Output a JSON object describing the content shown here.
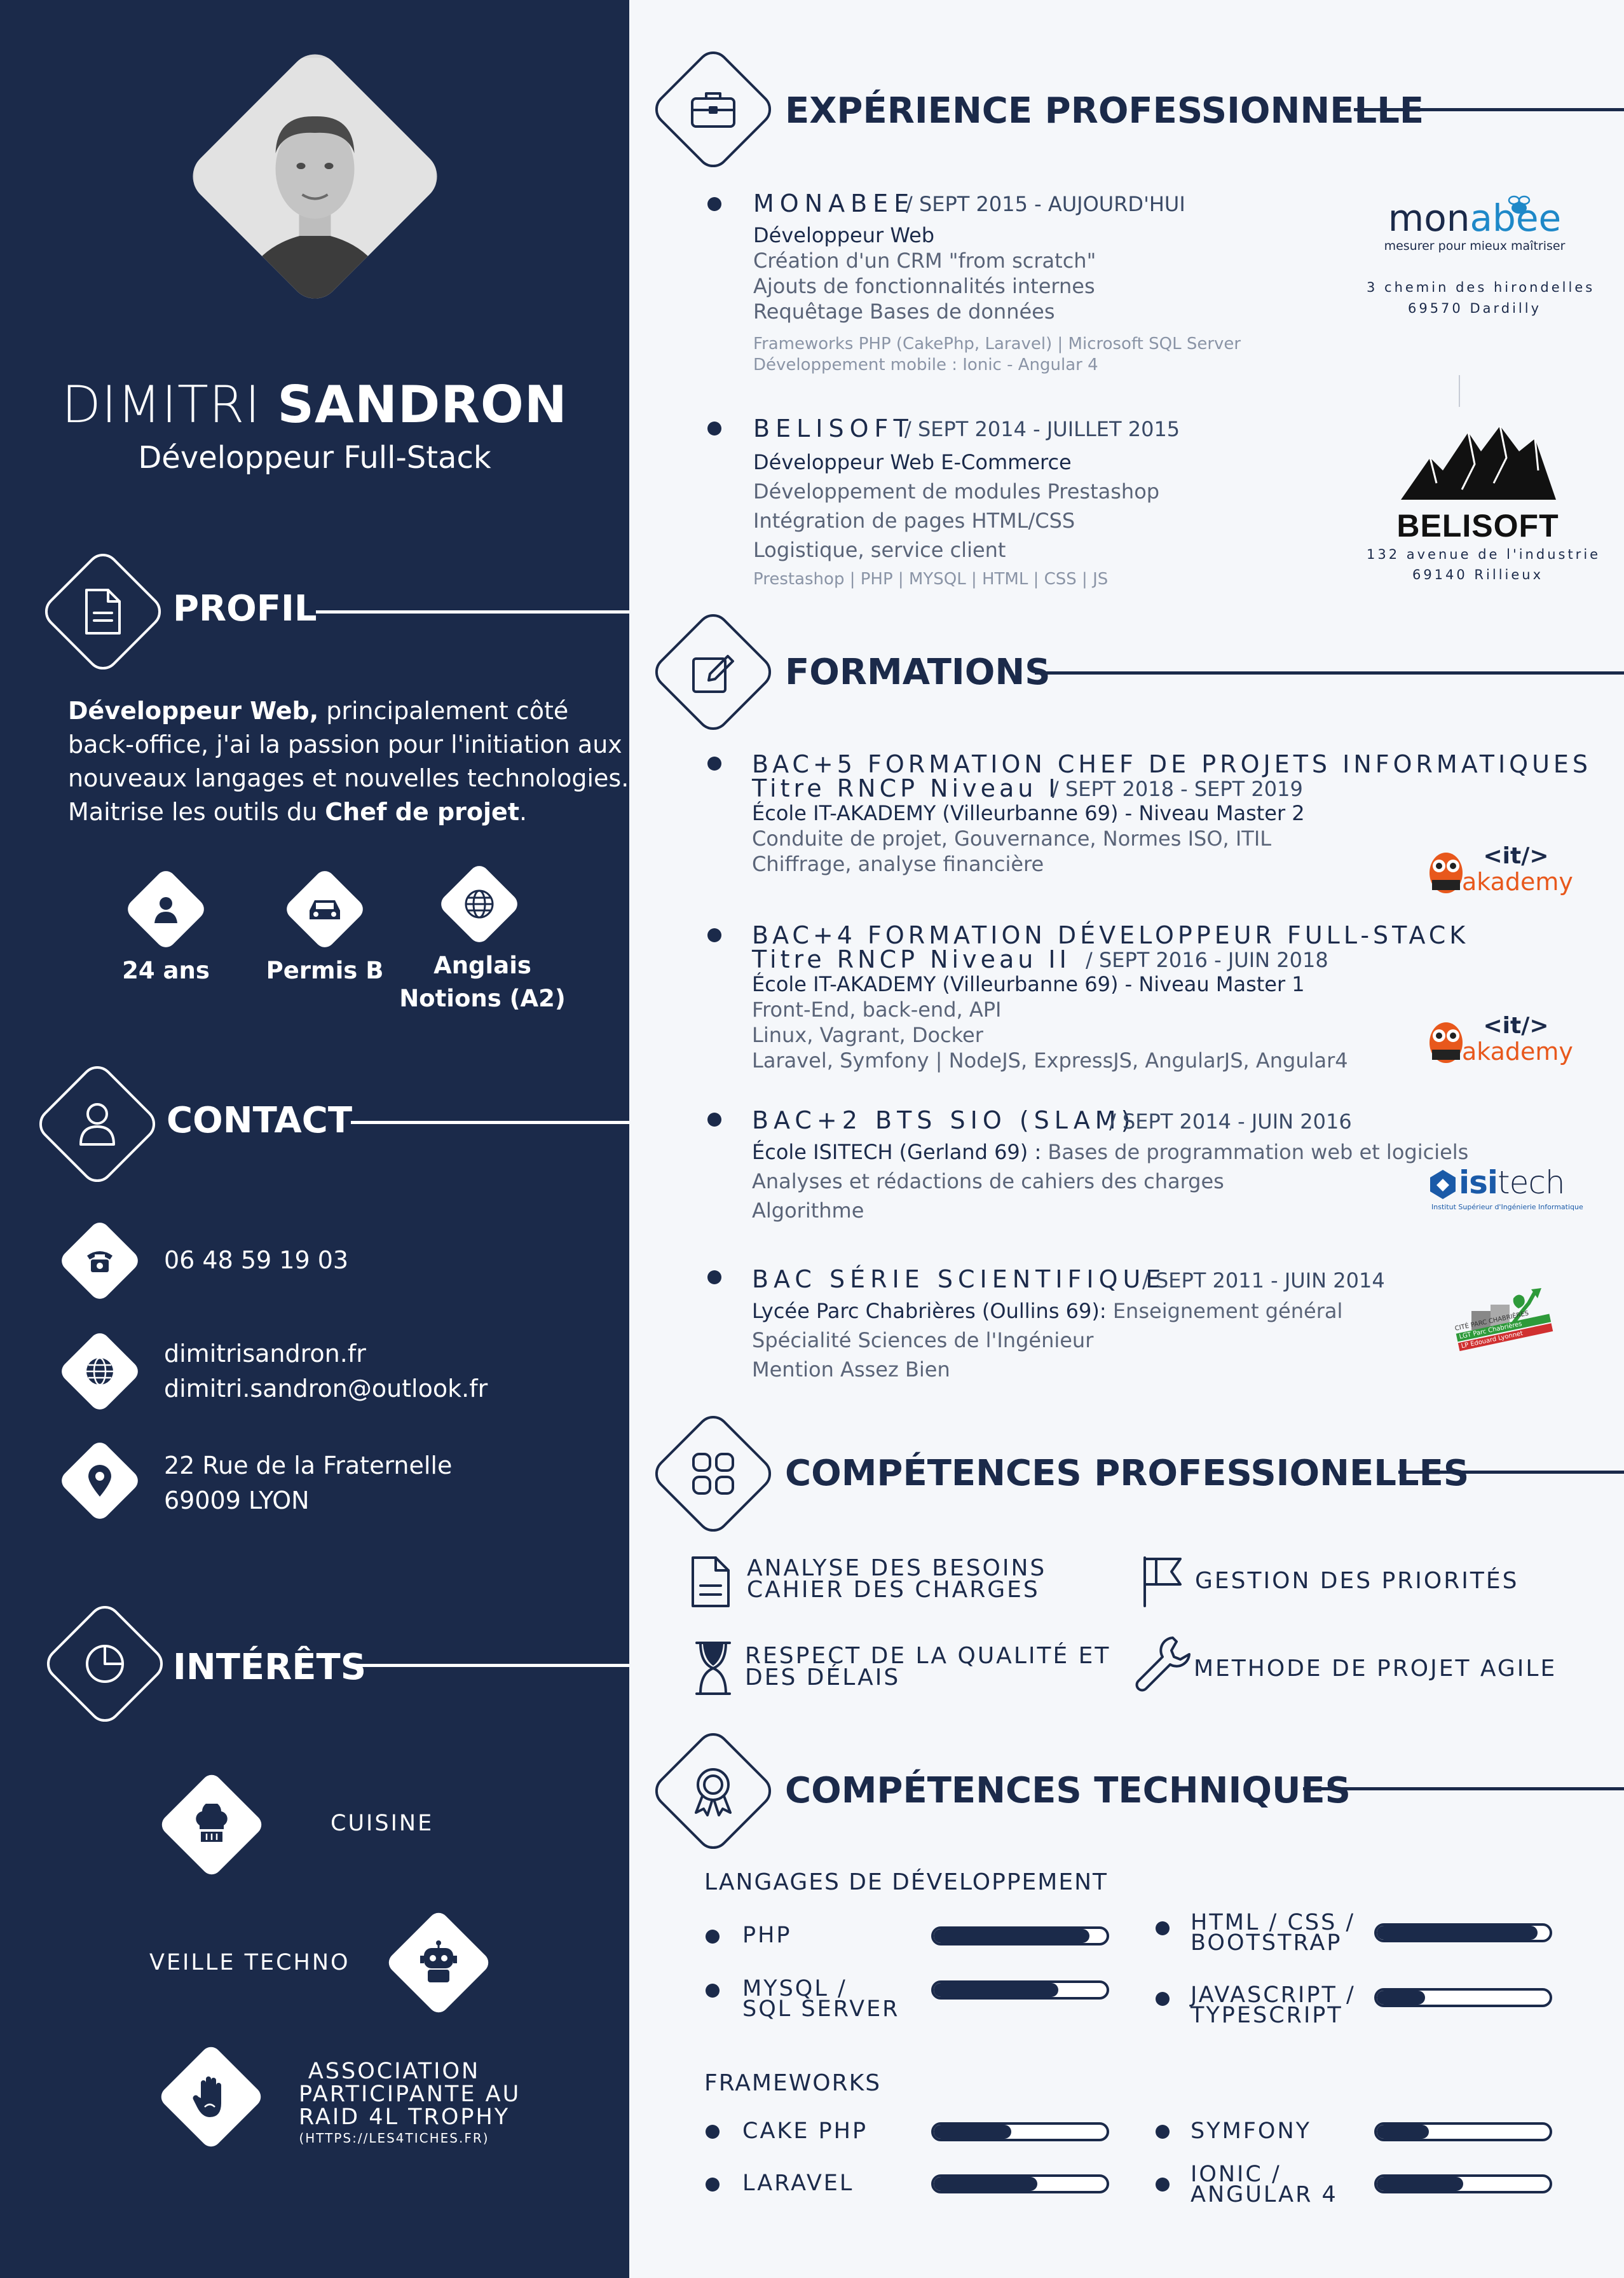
{
  "person": {
    "first_name": "DIMITRI",
    "last_name": "SANDRON",
    "title": "Développeur Full-Stack"
  },
  "profile": {
    "heading": "PROFIL",
    "bold1": "Développeur Web,",
    "line1_rest": " principalement côté",
    "line2": "back-office, j'ai la passion pour l'initiation aux",
    "line3": "nouveaux langages et nouvelles technologies.",
    "line4_start": "Maitrise les outils du ",
    "bold2": "Chef de projet",
    "line4_end": ".",
    "badges": [
      {
        "icon": "user-icon",
        "label": "24 ans"
      },
      {
        "icon": "car-icon",
        "label": "Permis B"
      },
      {
        "icon": "globe-icon",
        "label": "Anglais",
        "label2": "Notions (A2)"
      }
    ]
  },
  "contact": {
    "heading": "CONTACT",
    "phone": "06 48 59 19 03",
    "website": "dimitrisandron.fr",
    "email": "dimitri.sandron@outlook.fr",
    "address1": "22 Rue de la Fraternelle",
    "address2": "69009 LYON"
  },
  "interests": {
    "heading": "INTÉRÊTS",
    "items": [
      {
        "icon": "chef-hat-icon",
        "label": "CUISINE"
      },
      {
        "icon": "robot-icon",
        "label": "VEILLE TECHNO"
      },
      {
        "icon": "hand-icon",
        "label": "ASSOCIATION",
        "label2": "PARTICIPANTE AU",
        "label3": "RAID 4L TROPHY",
        "sub": "(HTTPS://LES4TICHES.FR)"
      }
    ]
  },
  "experience": {
    "heading": "EXPÉRIENCE PROFESSIONNELLE",
    "jobs": [
      {
        "company": "MONABEE",
        "dates": "/  SEPT 2015 - AUJOURD'HUI",
        "role": "Développeur Web",
        "lines": [
          "Création d'un CRM \"from scratch\"",
          "Ajouts de fonctionnalités internes",
          "Requêtage Bases de données"
        ],
        "tech": [
          "Frameworks PHP (CakePhp, Laravel) | Microsoft SQL Server",
          "Développement mobile : Ionic - Angular 4"
        ],
        "logo_text1": "mon",
        "logo_text2": "abee",
        "logo_tagline": "mesurer pour mieux maîtriser",
        "logo_addr1": "3 chemin des hirondelles",
        "logo_addr2": "69570 Dardilly"
      },
      {
        "company": "BELISOFT",
        "dates": "/  SEPT 2014 - JUILLET 2015",
        "role": "Développeur Web E-Commerce",
        "lines": [
          "Développement de modules Prestashop",
          "Intégration de pages HTML/CSS",
          "Logistique, service client"
        ],
        "tech": [
          "Prestashop | PHP | MYSQL | HTML | CSS | JS"
        ],
        "logo_text": "BELISOFT",
        "logo_addr1": "132 avenue de l'industrie",
        "logo_addr2": "69140 Rillieux"
      }
    ]
  },
  "education": {
    "heading": "FORMATIONS",
    "items": [
      {
        "title": "BAC+5 FORMATION CHEF DE PROJETS INFORMATIQUES",
        "subtitle": "Titre RNCP Niveau I",
        "dates": "/  SEPT 2018 - SEPT 2019",
        "school": "École IT-AKADEMY (Villeurbanne 69) - Niveau Master 2",
        "lines": [
          "Conduite de projet, Gouvernance, Normes ISO, ITIL",
          "Chiffrage, analyse financière"
        ],
        "logo_top": "<it/>",
        "logo_bottom": "akademy"
      },
      {
        "title": "BAC+4 FORMATION DÉVELOPPEUR FULL-STACK",
        "subtitle": "Titre RNCP Niveau II",
        "dates": "/  SEPT 2016 - JUIN 2018",
        "school": "École IT-AKADEMY (Villeurbanne 69) - Niveau Master 1",
        "lines": [
          "Front-End, back-end, API",
          "Linux, Vagrant, Docker",
          "Laravel, Symfony | NodeJS, ExpressJS, AngularJS, Angular4"
        ],
        "logo_top": "<it/>",
        "logo_bottom": "akademy"
      },
      {
        "title": "BAC+2 BTS SIO (SLAM)",
        "dates": "/  SEPT 2014 - JUIN 2016",
        "school": "École ISITECH (Gerland 69) :",
        "school_rest": " Bases de programmation web et logiciels",
        "lines": [
          "Analyses et rédactions de cahiers des charges",
          "Algorithme"
        ],
        "logo_a": "isi",
        "logo_b": "tech",
        "logo_sub": "Institut Supérieur d'Ingénierie Informatique"
      },
      {
        "title": "BAC SÉRIE SCIENTIFIQUE",
        "dates": "/  SEPT 2011 - JUIN 2014",
        "school": "Lycée Parc Chabrières (Oullins 69):",
        "school_rest": " Enseignement général",
        "lines": [
          "Spécialité Sciences de l'Ingénieur",
          "Mention Assez Bien"
        ],
        "logo_a": "CITÉ PARC CHABRIÈRES",
        "logo_b": "LGT Parc Chabrières",
        "logo_c": "LP Edouard Lyonnet"
      }
    ]
  },
  "pro_skills": {
    "heading": "COMPÉTENCES PROFESSIONELLES",
    "items": [
      {
        "icon": "document-icon",
        "line1": "ANALYSE DES BESOINS",
        "line2": "CAHIER DES CHARGES"
      },
      {
        "icon": "flag-icon",
        "line1": "GESTION DES PRIORITÉS"
      },
      {
        "icon": "hourglass-icon",
        "line1": "RESPECT DE LA QUALITÉ ET",
        "line2": "DES DÉLAIS"
      },
      {
        "icon": "wrench-icon",
        "line1": "METHODE DE PROJET AGILE"
      }
    ]
  },
  "tech_skills": {
    "heading": "COMPÉTENCES TECHNIQUES",
    "languages_heading": "LANGAGES DE DÉVELOPPEMENT",
    "languages": [
      {
        "line1": "PHP",
        "level": 0.9
      },
      {
        "line1": "HTML / CSS /",
        "line2": "BOOTSTRAP",
        "level": 0.93
      },
      {
        "line1": "MYSQL /",
        "line2": "SQL SERVER",
        "level": 0.72
      },
      {
        "line1": "JAVASCRIPT /",
        "line2": "TYPESCRIPT",
        "level": 0.28
      }
    ],
    "frameworks_heading": "FRAMEWORKS",
    "frameworks": [
      {
        "line1": "CAKE PHP",
        "level": 0.45
      },
      {
        "line1": "SYMFONY",
        "level": 0.3
      },
      {
        "line1": "LARAVEL",
        "level": 0.6
      },
      {
        "line1": "IONIC /",
        "line2": "ANGULAR 4",
        "level": 0.5
      }
    ]
  },
  "colors": {
    "navy": "#1b2a4a",
    "background": "#f5f7fa",
    "orange": "#e8581c",
    "green": "#2e9a3a"
  }
}
